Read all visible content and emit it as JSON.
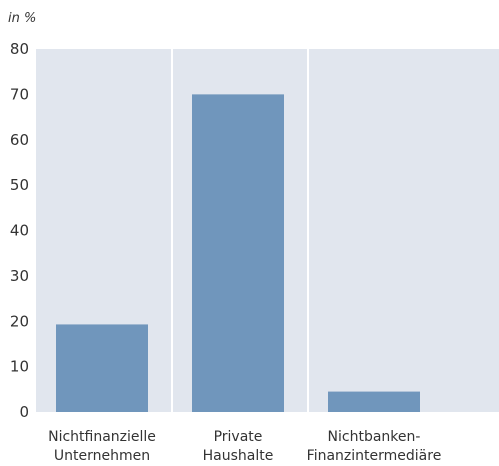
{
  "chart_data": {
    "type": "bar",
    "title": "",
    "xlabel": "",
    "ylabel": "",
    "unit_label": "in %",
    "categories": [
      [
        "Nichtfinanzielle",
        "Unternehmen"
      ],
      [
        "Private",
        "Haushalte"
      ],
      [
        "Nichtbanken-",
        "Finanzintermediäre"
      ]
    ],
    "values": [
      19.3,
      70.0,
      4.5
    ],
    "ylim": [
      0,
      80
    ],
    "yticks": [
      0,
      10,
      20,
      30,
      40,
      50,
      60,
      70,
      80
    ],
    "grid": "vertical separators between categories",
    "colors": {
      "bar": "#7096bc",
      "plot_background": "#e1e6ee",
      "separator": "#ffffff",
      "text": "#333333"
    }
  }
}
